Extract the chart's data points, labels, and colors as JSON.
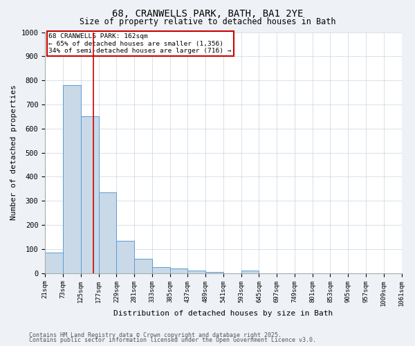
{
  "title1": "68, CRANWELLS PARK, BATH, BA1 2YE",
  "title2": "Size of property relative to detached houses in Bath",
  "xlabel": "Distribution of detached houses by size in Bath",
  "ylabel": "Number of detached properties",
  "bins": [
    21,
    73,
    125,
    177,
    229,
    281,
    333,
    385,
    437,
    489,
    541,
    593,
    645,
    697,
    749,
    801,
    853,
    905,
    957,
    1009,
    1061
  ],
  "bar_heights": [
    85,
    780,
    650,
    335,
    135,
    58,
    25,
    18,
    10,
    6,
    0,
    10,
    0,
    0,
    0,
    0,
    0,
    0,
    0,
    0
  ],
  "bar_color": "#c9d9e8",
  "bar_edge_color": "#5b9bd5",
  "red_line_x": 162,
  "annotation_title": "68 CRANWELLS PARK: 162sqm",
  "annotation_line2": "← 65% of detached houses are smaller (1,356)",
  "annotation_line3": "34% of semi-detached houses are larger (716) →",
  "annotation_box_color": "#cc0000",
  "ylim": [
    0,
    1000
  ],
  "yticks": [
    0,
    100,
    200,
    300,
    400,
    500,
    600,
    700,
    800,
    900,
    1000
  ],
  "footer1": "Contains HM Land Registry data © Crown copyright and database right 2025.",
  "footer2": "Contains public sector information licensed under the Open Government Licence v3.0.",
  "bg_color": "#eef2f6",
  "plot_bg_color": "#ffffff",
  "grid_color": "#c8d4de"
}
